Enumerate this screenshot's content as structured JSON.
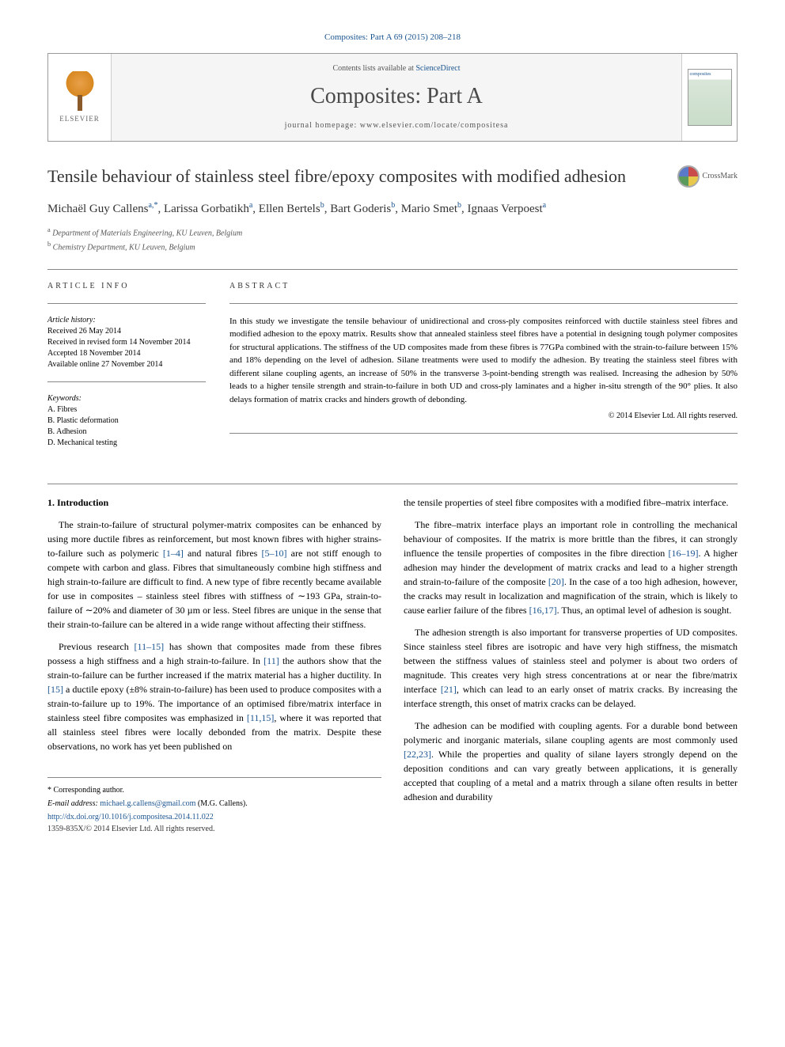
{
  "citation": "Composites: Part A 69 (2015) 208–218",
  "header": {
    "publisher_label": "ELSEVIER",
    "contents_prefix": "Contents lists available at ",
    "contents_link": "ScienceDirect",
    "journal_name": "Composites: Part A",
    "homepage_prefix": "journal homepage: ",
    "homepage_url": "www.elsevier.com/locate/compositesa",
    "cover_label": "composites"
  },
  "title": "Tensile behaviour of stainless steel fibre/epoxy composites with modified adhesion",
  "crossmark_label": "CrossMark",
  "authors_line_parts": [
    {
      "name": "Michaël Guy Callens",
      "sup": "a,",
      "corr": "*"
    },
    {
      "name": "Larissa Gorbatikh",
      "sup": "a"
    },
    {
      "name": "Ellen Bertels",
      "sup": "b"
    },
    {
      "name": "Bart Goderis",
      "sup": "b"
    },
    {
      "name": "Mario Smet",
      "sup": "b"
    },
    {
      "name": "Ignaas Verpoest",
      "sup": "a"
    }
  ],
  "affiliations": [
    {
      "sup": "a",
      "text": "Department of Materials Engineering, KU Leuven, Belgium"
    },
    {
      "sup": "b",
      "text": "Chemistry Department, KU Leuven, Belgium"
    }
  ],
  "article_info": {
    "heading": "ARTICLE INFO",
    "history_label": "Article history:",
    "history": [
      "Received 26 May 2014",
      "Received in revised form 14 November 2014",
      "Accepted 18 November 2014",
      "Available online 27 November 2014"
    ],
    "keywords_label": "Keywords:",
    "keywords": [
      "A. Fibres",
      "B. Plastic deformation",
      "B. Adhesion",
      "D. Mechanical testing"
    ]
  },
  "abstract": {
    "heading": "ABSTRACT",
    "text": "In this study we investigate the tensile behaviour of unidirectional and cross-ply composites reinforced with ductile stainless steel fibres and modified adhesion to the epoxy matrix. Results show that annealed stainless steel fibres have a potential in designing tough polymer composites for structural applications. The stiffness of the UD composites made from these fibres is 77GPa combined with the strain-to-failure between 15% and 18% depending on the level of adhesion. Silane treatments were used to modify the adhesion. By treating the stainless steel fibres with different silane coupling agents, an increase of 50% in the transverse 3-point-bending strength was realised. Increasing the adhesion by 50% leads to a higher tensile strength and strain-to-failure in both UD and cross-ply laminates and a higher in-situ strength of the 90° plies. It also delays formation of matrix cracks and hinders growth of debonding.",
    "copyright": "© 2014 Elsevier Ltd. All rights reserved."
  },
  "body": {
    "section_heading": "1. Introduction",
    "left": [
      {
        "text": "The strain-to-failure of structural polymer-matrix composites can be enhanced by using more ductile fibres as reinforcement, but most known fibres with higher strains-to-failure such as polymeric ",
        "ref1": "[1–4]",
        "mid1": " and natural fibres ",
        "ref2": "[5–10]",
        "tail": " are not stiff enough to compete with carbon and glass. Fibres that simultaneously combine high stiffness and high strain-to-failure are difficult to find. A new type of fibre recently became available for use in composites – stainless steel fibres with stiffness of ∼193 GPa, strain-to-failure of ∼20% and diameter of 30 µm or less. Steel fibres are unique in the sense that their strain-to-failure can be altered in a wide range without affecting their stiffness."
      },
      {
        "text": "Previous research ",
        "ref1": "[11–15]",
        "mid1": " has shown that composites made from these fibres possess a high stiffness and a high strain-to-failure. In ",
        "ref2": "[11]",
        "mid2": " the authors show that the strain-to-failure can be further increased if the matrix material has a higher ductility. In ",
        "ref3": "[15]",
        "mid3": " a ductile epoxy (±8% strain-to-failure) has been used to produce composites with a strain-to-failure up to 19%. The importance of an optimised fibre/matrix interface in stainless steel fibre composites was emphasized in ",
        "ref4": "[11,15]",
        "tail": ", where it was reported that all stainless steel fibres were locally debonded from the matrix. Despite these observations, no work has yet been published on"
      }
    ],
    "right": [
      {
        "text": "the tensile properties of steel fibre composites with a modified fibre–matrix interface."
      },
      {
        "text": "The fibre–matrix interface plays an important role in controlling the mechanical behaviour of composites. If the matrix is more brittle than the fibres, it can strongly influence the tensile properties of composites in the fibre direction ",
        "ref1": "[16–19]",
        "mid1": ". A higher adhesion may hinder the development of matrix cracks and lead to a higher strength and strain-to-failure of the composite ",
        "ref2": "[20]",
        "mid2": ". In the case of a too high adhesion, however, the cracks may result in localization and magnification of the strain, which is likely to cause earlier failure of the fibres ",
        "ref3": "[16,17]",
        "tail": ". Thus, an optimal level of adhesion is sought."
      },
      {
        "text": "The adhesion strength is also important for transverse properties of UD composites. Since stainless steel fibres are isotropic and have very high stiffness, the mismatch between the stiffness values of stainless steel and polymer is about two orders of magnitude. This creates very high stress concentrations at or near the fibre/matrix interface ",
        "ref1": "[21]",
        "tail": ", which can lead to an early onset of matrix cracks. By increasing the interface strength, this onset of matrix cracks can be delayed."
      },
      {
        "text": "The adhesion can be modified with coupling agents. For a durable bond between polymeric and inorganic materials, silane coupling agents are most commonly used ",
        "ref1": "[22,23]",
        "tail": ". While the properties and quality of silane layers strongly depend on the deposition conditions and can vary greatly between applications, it is generally accepted that coupling of a metal and a matrix through a silane often results in better adhesion and durability"
      }
    ]
  },
  "footer": {
    "corr_marker": "* Corresponding author.",
    "email_label": "E-mail address: ",
    "email": "michael.g.callens@gmail.com",
    "email_person": " (M.G. Callens).",
    "doi": "http://dx.doi.org/10.1016/j.compositesa.2014.11.022",
    "issn_copyright": "1359-835X/© 2014 Elsevier Ltd. All rights reserved."
  },
  "colors": {
    "link": "#1a5490",
    "text": "#000000",
    "muted": "#555555",
    "rule": "#888888"
  }
}
